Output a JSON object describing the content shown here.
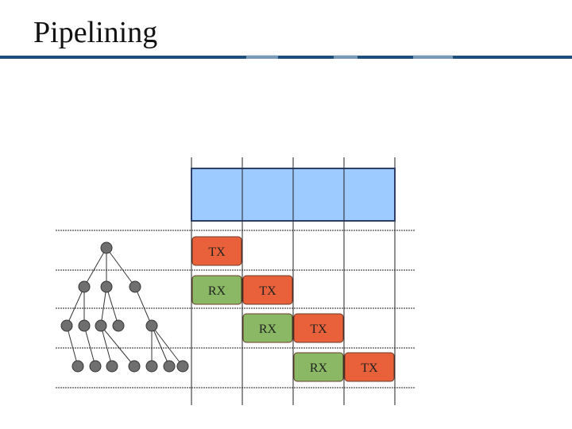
{
  "slide": {
    "title": "Pipelining"
  },
  "colors": {
    "title_bar": "#1f4f7a",
    "title_bar_light": "#b8cbe0",
    "top_bar_fill": "#9ecbff",
    "top_bar_stroke": "#2d3f66",
    "tx_fill": "#e8613a",
    "rx_fill": "#8ab865",
    "box_stroke": "#6b3a2a",
    "node_fill": "#6f6f6f",
    "node_stroke": "#333333",
    "grid_line": "#222222"
  },
  "timing": {
    "labels": {
      "tx": "TX",
      "rx": "RX"
    },
    "rows": [
      {
        "level": 1,
        "cells": [
          {
            "type": "tx",
            "slot": 0
          }
        ]
      },
      {
        "level": 2,
        "cells": [
          {
            "type": "rx",
            "slot": 0
          },
          {
            "type": "tx",
            "slot": 1
          }
        ]
      },
      {
        "level": 3,
        "cells": [
          {
            "type": "rx",
            "slot": 1
          },
          {
            "type": "tx",
            "slot": 2
          }
        ]
      },
      {
        "level": 4,
        "cells": [
          {
            "type": "rx",
            "slot": 2
          },
          {
            "type": "tx",
            "slot": 3
          }
        ]
      }
    ]
  },
  "tree": {
    "levels": [
      1,
      3,
      5,
      7
    ],
    "parents": [
      [],
      [
        0,
        0,
        0
      ],
      [
        0,
        0,
        1,
        1,
        2
      ],
      [
        0,
        1,
        2,
        2,
        4,
        4,
        4
      ]
    ]
  }
}
